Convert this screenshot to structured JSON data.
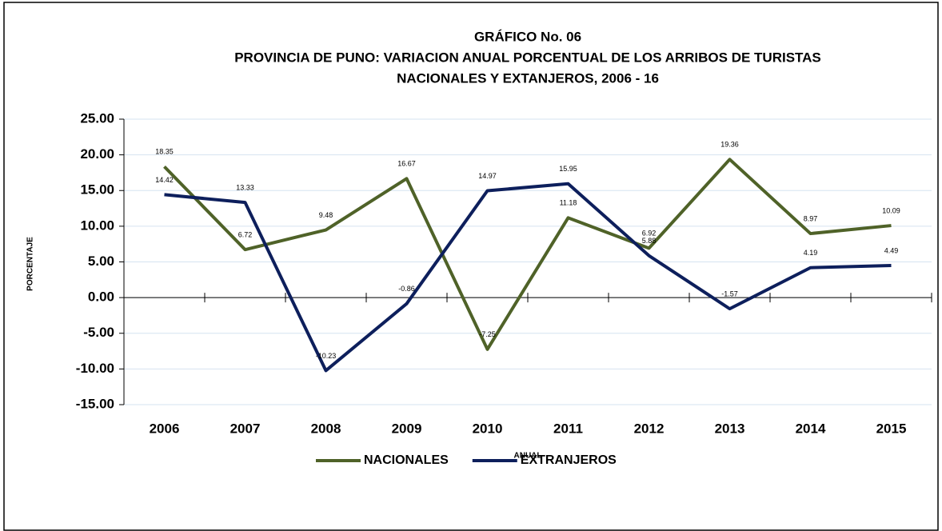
{
  "chart_data": {
    "type": "line",
    "title": "GRÁFICO No. 06",
    "subtitle": [
      "PROVINCIA DE PUNO: VARIACION ANUAL PORCENTUAL DE LOS ARRIBOS DE TURISTAS",
      "NACIONALES Y EXTANJEROS, 2006 - 16"
    ],
    "x_label": "ANUAL",
    "y_label": "PORCENTAJE",
    "categories": [
      "2006",
      "2007",
      "2008",
      "2009",
      "2010",
      "2011",
      "2012",
      "2013",
      "2014",
      "2015"
    ],
    "series": [
      {
        "name": "NACIONALES",
        "color": "#4f6228",
        "values": [
          18.35,
          6.72,
          9.48,
          16.67,
          -7.25,
          11.18,
          6.92,
          19.36,
          8.97,
          10.09
        ]
      },
      {
        "name": "EXTRANJEROS",
        "color": "#0d1f5c",
        "values": [
          14.42,
          13.33,
          -10.23,
          -0.86,
          14.97,
          15.95,
          5.88,
          -1.57,
          4.19,
          4.49
        ]
      }
    ],
    "ylim": [
      -15,
      25
    ],
    "yticks": [
      {
        "value": -15,
        "label": "-15.00"
      },
      {
        "value": -10,
        "label": "-10.00"
      },
      {
        "value": -5,
        "label": "-5.00"
      },
      {
        "value": 0,
        "label": "0.00"
      },
      {
        "value": 5,
        "label": "5.00"
      },
      {
        "value": 10,
        "label": "10.00"
      },
      {
        "value": 15,
        "label": "15.00"
      },
      {
        "value": 20,
        "label": "20.00"
      },
      {
        "value": 25,
        "label": "25.00"
      }
    ],
    "grid": true,
    "legend": "bottom"
  }
}
